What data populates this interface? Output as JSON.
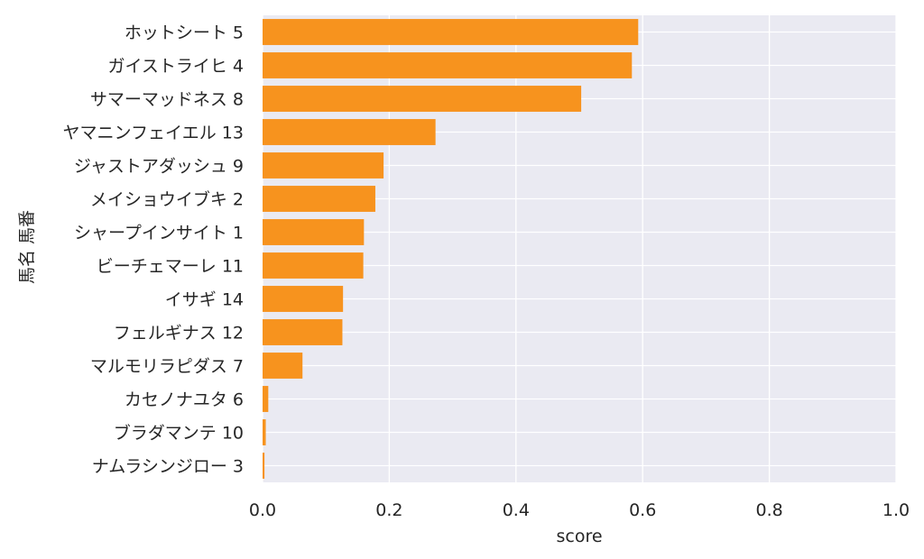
{
  "chart_data": {
    "type": "bar",
    "orientation": "horizontal",
    "categories": [
      "ホットシート 5",
      "ガイストライヒ 4",
      "サマーマッドネス 8",
      "ヤマニンフェイエル 13",
      "ジャストアダッシュ 9",
      "メイショウイブキ 2",
      "シャープインサイト 1",
      "ビーチェマーレ 11",
      "イサギ 14",
      "フェルギナス 12",
      "マルモリラピダス 7",
      "カセノナユタ 6",
      "ブラダマンテ 10",
      "ナムラシンジロー 3"
    ],
    "values": [
      0.593,
      0.583,
      0.503,
      0.273,
      0.191,
      0.178,
      0.16,
      0.159,
      0.127,
      0.126,
      0.063,
      0.009,
      0.005,
      0.003
    ],
    "xlabel": "score",
    "ylabel": "馬名 馬番",
    "xlim": [
      0,
      1.0
    ],
    "xticks": [
      "0.0",
      "0.2",
      "0.4",
      "0.6",
      "0.8",
      "1.0"
    ],
    "grid": true,
    "colors": {
      "bar": "#f7931e",
      "background": "#eaeaf2",
      "grid": "#ffffff"
    }
  }
}
